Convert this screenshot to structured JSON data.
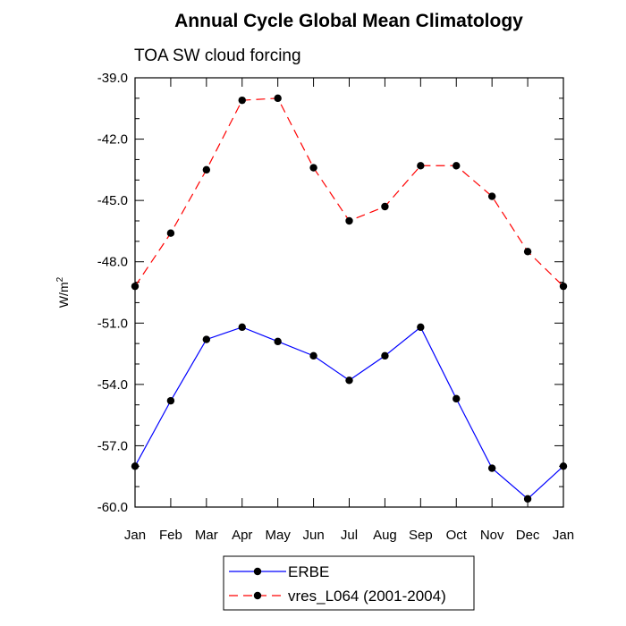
{
  "chart_data": {
    "type": "line",
    "title": "Annual Cycle Global Mean Climatology",
    "subtitle": "TOA SW cloud forcing",
    "xlabel": "",
    "ylabel": "W/m",
    "ylabel_superscript": "2",
    "categories": [
      "Jan",
      "Feb",
      "Mar",
      "Apr",
      "May",
      "Jun",
      "Jul",
      "Aug",
      "Sep",
      "Oct",
      "Nov",
      "Dec",
      "Jan"
    ],
    "ylim": [
      -60.0,
      -39.0
    ],
    "yticks": [
      "-39.0",
      "-42.0",
      "-45.0",
      "-48.0",
      "-51.0",
      "-54.0",
      "-57.0",
      "-60.0"
    ],
    "ytick_values": [
      -39,
      -42,
      -45,
      -48,
      -51,
      -54,
      -57,
      -60
    ],
    "grid": false,
    "legend_position": "bottom-center",
    "series": [
      {
        "name": "ERBE",
        "color": "#0000ff",
        "dash": "solid",
        "values": [
          -58.0,
          -54.8,
          -51.8,
          -51.2,
          -51.9,
          -52.6,
          -53.8,
          -52.6,
          -51.2,
          -54.7,
          -58.1,
          -59.6,
          -58.0
        ]
      },
      {
        "name": "vres_L064 (2001-2004)",
        "color": "#ff0000",
        "dash": "dashed",
        "values": [
          -49.2,
          -46.6,
          -43.5,
          -40.1,
          -40.0,
          -43.4,
          -46.0,
          -45.3,
          -43.3,
          -43.3,
          -44.8,
          -47.5,
          -49.2
        ]
      }
    ]
  }
}
